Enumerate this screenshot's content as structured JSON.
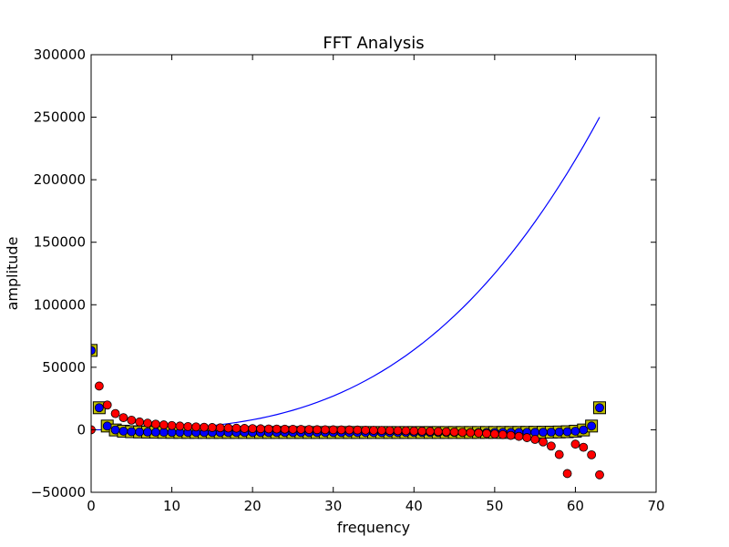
{
  "chart_data": {
    "type": "scatter",
    "title": "FFT Analysis",
    "xlabel": "frequency",
    "ylabel": "amplitude",
    "xlim": [
      0,
      70
    ],
    "ylim": [
      -50000,
      300000
    ],
    "xticks": [
      0,
      10,
      20,
      30,
      40,
      50,
      60,
      70
    ],
    "xtick_labels": [
      "0",
      "10",
      "20",
      "30",
      "40",
      "50",
      "60",
      "70"
    ],
    "yticks": [
      -50000,
      0,
      50000,
      100000,
      150000,
      200000,
      250000,
      300000
    ],
    "ytick_labels": [
      "−50000",
      "0",
      "50000",
      "100000",
      "150000",
      "200000",
      "250000",
      "300000"
    ],
    "grid": false,
    "series": [
      {
        "style": "line",
        "color": "#0000ff",
        "x": [
          0,
          1,
          2,
          3,
          4,
          5,
          6,
          7,
          8,
          9,
          10,
          11,
          12,
          13,
          14,
          15,
          16,
          17,
          18,
          19,
          20,
          21,
          22,
          23,
          24,
          25,
          26,
          27,
          28,
          29,
          30,
          31,
          32,
          33,
          34,
          35,
          36,
          37,
          38,
          39,
          40,
          41,
          42,
          43,
          44,
          45,
          46,
          47,
          48,
          49,
          50,
          51,
          52,
          53,
          54,
          55,
          56,
          57,
          58,
          59,
          60,
          61,
          62,
          63
        ],
        "y": [
          0,
          1,
          8,
          27,
          64,
          125,
          216,
          343,
          512,
          729,
          1000,
          1331,
          1728,
          2197,
          2744,
          3375,
          4096,
          4913,
          5832,
          6859,
          8000,
          9261,
          10648,
          12167,
          13824,
          15625,
          17576,
          19683,
          21952,
          24389,
          27000,
          29791,
          32768,
          35937,
          39304,
          42875,
          46656,
          50653,
          54872,
          59319,
          64000,
          68921,
          74088,
          79507,
          85184,
          91125,
          97336,
          103823,
          110592,
          117649,
          125000,
          132651,
          140608,
          148877,
          157464,
          166375,
          175616,
          185193,
          195112,
          205379,
          216000,
          226981,
          238328,
          250047
        ]
      },
      {
        "style": "square-marker",
        "color": "#bfbf00",
        "x": [
          0,
          1,
          2,
          3,
          4,
          5,
          6,
          7,
          8,
          9,
          10,
          11,
          12,
          13,
          14,
          15,
          16,
          17,
          18,
          19,
          20,
          21,
          22,
          23,
          24,
          25,
          26,
          27,
          28,
          29,
          30,
          31,
          32,
          33,
          34,
          35,
          36,
          37,
          38,
          39,
          40,
          41,
          42,
          43,
          44,
          45,
          46,
          47,
          48,
          49,
          50,
          51,
          52,
          53,
          54,
          55,
          56,
          57,
          58,
          59,
          60,
          61,
          62,
          63
        ],
        "y": [
          63504,
          17612,
          2985,
          -155,
          -1123,
          -1538,
          -1754,
          -1880,
          -1960,
          -2014,
          -2052,
          -2079,
          -2100,
          -2116,
          -2128,
          -2138,
          -2146,
          -2152,
          -2158,
          -2162,
          -2166,
          -2169,
          -2171,
          -2173,
          -2175,
          -2177,
          -2178,
          -2179,
          -2180,
          -2180,
          -2181,
          -2181,
          -2181,
          -2181,
          -2181,
          -2180,
          -2180,
          -2179,
          -2178,
          -2177,
          -2175,
          -2173,
          -2171,
          -2169,
          -2166,
          -2162,
          -2158,
          -2152,
          -2146,
          -2138,
          -2128,
          -2116,
          -2100,
          -2079,
          -2052,
          -2014,
          -1960,
          -1880,
          -1754,
          -1538,
          -1123,
          -155,
          2985,
          17612
        ]
      },
      {
        "style": "circle-marker",
        "color": "#0000ff",
        "x": [
          0,
          1,
          2,
          3,
          4,
          5,
          6,
          7,
          8,
          9,
          10,
          11,
          12,
          13,
          14,
          15,
          16,
          17,
          18,
          19,
          20,
          21,
          22,
          23,
          24,
          25,
          26,
          27,
          28,
          29,
          30,
          31,
          32,
          33,
          34,
          35,
          36,
          37,
          38,
          39,
          40,
          41,
          42,
          43,
          44,
          45,
          46,
          47,
          48,
          49,
          50,
          51,
          52,
          53,
          54,
          55,
          56,
          57,
          58,
          59,
          60,
          61,
          62,
          63
        ],
        "y": [
          63504,
          17612,
          2985,
          -155,
          -1123,
          -1538,
          -1754,
          -1880,
          -1960,
          -2014,
          -2052,
          -2079,
          -2100,
          -2116,
          -2128,
          -2138,
          -2146,
          -2152,
          -2158,
          -2162,
          -2166,
          -2169,
          -2171,
          -2173,
          -2175,
          -2177,
          -2178,
          -2179,
          -2180,
          -2180,
          -2181,
          -2181,
          -2181,
          -2181,
          -2181,
          -2180,
          -2180,
          -2179,
          -2178,
          -2177,
          -2175,
          -2173,
          -2171,
          -2169,
          -2166,
          -2162,
          -2158,
          -2152,
          -2146,
          -2138,
          -2128,
          -2116,
          -2100,
          -2079,
          -2052,
          -2014,
          -1960,
          -1880,
          -1754,
          -1538,
          -1123,
          -155,
          2985,
          17612
        ]
      },
      {
        "style": "circle-marker",
        "color": "#ff0000",
        "x": [
          0,
          1,
          2,
          3,
          4,
          5,
          6,
          7,
          8,
          9,
          10,
          11,
          12,
          13,
          14,
          15,
          16,
          17,
          18,
          19,
          20,
          21,
          22,
          23,
          24,
          25,
          26,
          27,
          28,
          29,
          30,
          31,
          32,
          33,
          34,
          35,
          36,
          37,
          38,
          39,
          40,
          41,
          42,
          43,
          44,
          45,
          46,
          47,
          48,
          49,
          50,
          51,
          52,
          53,
          54,
          55,
          56,
          57,
          58,
          59,
          60,
          61,
          62,
          63
        ],
        "y": [
          0,
          35000,
          19800,
          13000,
          9700,
          7700,
          6300,
          5300,
          4500,
          3900,
          3400,
          3000,
          2600,
          2300,
          2050,
          1800,
          1600,
          1400,
          1250,
          1100,
          950,
          800,
          700,
          600,
          500,
          400,
          300,
          200,
          100,
          50,
          0,
          -50,
          -100,
          -200,
          -300,
          -400,
          -500,
          -600,
          -700,
          -800,
          -950,
          -1100,
          -1250,
          -1400,
          -1600,
          -1800,
          -2050,
          -2300,
          -2600,
          -3000,
          -3400,
          -3900,
          -4500,
          -5300,
          -6300,
          -7700,
          -9700,
          -13000,
          -19800,
          -35000,
          -11500,
          -14000,
          -20000,
          -36000
        ]
      }
    ]
  }
}
